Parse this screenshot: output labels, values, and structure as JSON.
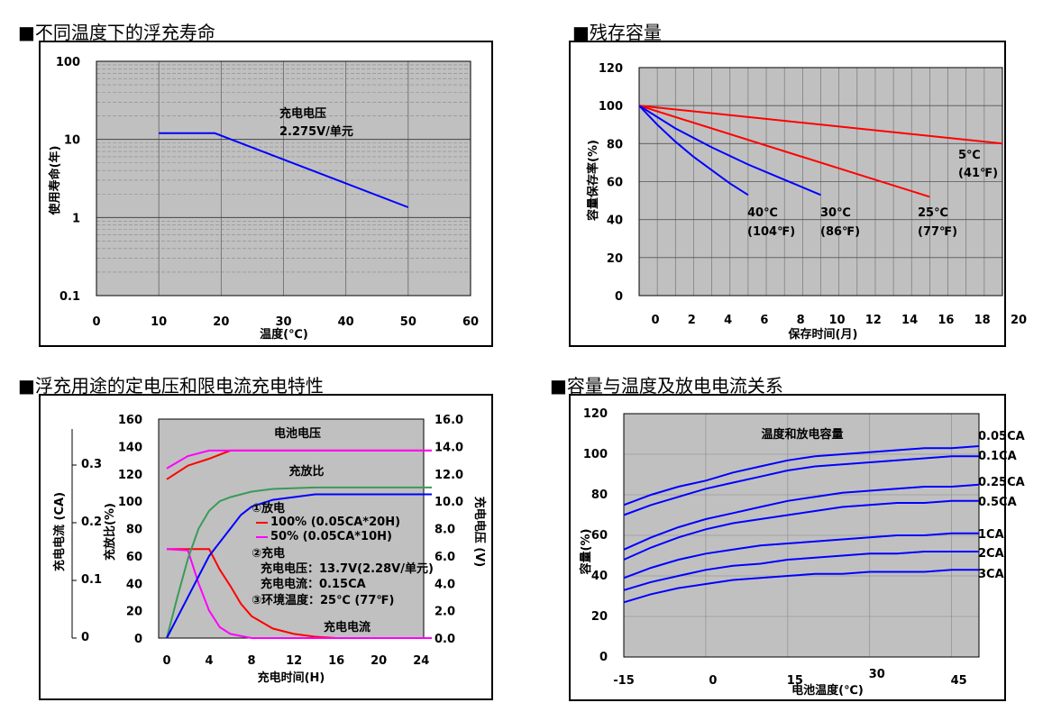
{
  "titles": {
    "float_life": "■不同温度下的浮充寿命",
    "residual": "■残存容量",
    "charging": "■浮充用途的定电压和限电流充电特性",
    "capacity": "■容量与温度及放电电流关系"
  },
  "chart_data": [
    {
      "id": "float_life",
      "type": "line",
      "xlabel": "温度(℃)",
      "ylabel": "使用寿命(年)",
      "xlim": [
        0,
        60
      ],
      "xticks": [
        "0",
        "10",
        "20",
        "30",
        "40",
        "50",
        "60"
      ],
      "ylim": [
        0.1,
        100
      ],
      "yscale": "log",
      "yticks": [
        "0.1",
        "1",
        "10",
        "100"
      ],
      "grid": true,
      "annotation": [
        "充电电压",
        "2.275V/单元"
      ],
      "series": [
        {
          "x": [
            10,
            19,
            50
          ],
          "y": [
            12,
            12,
            1.35
          ],
          "color": "#0000ff"
        }
      ]
    },
    {
      "id": "residual",
      "type": "line",
      "xlabel": "保存时间(月)",
      "ylabel": "容量保存率(%)",
      "xlim": [
        0,
        20
      ],
      "xticks": [
        "0",
        "2",
        "4",
        "6",
        "8",
        "10",
        "12",
        "14",
        "16",
        "18",
        "20"
      ],
      "ylim": [
        0,
        120
      ],
      "yticks": [
        "0",
        "20",
        "40",
        "60",
        "80",
        "100",
        "120"
      ],
      "grid": true,
      "series": [
        {
          "name": [
            "5℃",
            "(41℉)"
          ],
          "color": "#ff0000",
          "x": [
            0,
            20
          ],
          "y": [
            100,
            80
          ]
        },
        {
          "name": [
            "25℃",
            "(77℉)"
          ],
          "color": "#ff0000",
          "x": [
            0,
            16
          ],
          "y": [
            100,
            52
          ]
        },
        {
          "name": [
            "30℃",
            "(86℉)"
          ],
          "color": "#0000ff",
          "x": [
            0,
            2,
            4,
            6,
            8,
            10
          ],
          "y": [
            100,
            88,
            78,
            69,
            61,
            53
          ]
        },
        {
          "name": [
            "40℃",
            "(104℉)"
          ],
          "color": "#0000ff",
          "x": [
            0,
            1,
            2,
            3,
            4,
            5,
            6
          ],
          "y": [
            100,
            90,
            81,
            73,
            66,
            59,
            53
          ]
        }
      ]
    },
    {
      "id": "charging",
      "type": "line",
      "xlabel": "充电时间(H)",
      "ylabel_left_outer": "充电电流 (CA)",
      "ylabel_left": "充放比(%)",
      "ylabel_right": "充电电压 (V)",
      "xlim": [
        0,
        25
      ],
      "xticks": [
        "0",
        "4",
        "8",
        "12",
        "16",
        "20",
        "24"
      ],
      "ylim": [
        0,
        160
      ],
      "yticks": [
        "0",
        "20",
        "40",
        "60",
        "80",
        "100",
        "120",
        "140",
        "160"
      ],
      "y2ticks": [
        "0.0",
        "2.0",
        "4.0",
        "6.0",
        "8.0",
        "10.0",
        "12.0",
        "14.0",
        "16.0"
      ],
      "y3ticks": [
        "0",
        "0.1",
        "0.2",
        "0.3"
      ],
      "grid": false,
      "labels": {
        "voltage": "电池电压",
        "ratio": "充放比",
        "current": "充电电流"
      },
      "legend": {
        "discharge": "①放电",
        "l100": "100% (0.05CA*20H)",
        "l50": "50% (0.05CA*10H)",
        "charge": "②充电",
        "volt": "充电电压：13.7V(2.28V/单元)",
        "curr": "充电电流：0.15CA",
        "env": "③环境温度：25℃ (77℉)"
      },
      "series": [
        {
          "name": "100% voltage",
          "color": "#ff0000",
          "x": [
            0,
            2,
            4,
            6,
            25
          ],
          "y": [
            116,
            126,
            131,
            137,
            137
          ]
        },
        {
          "name": "50% voltage",
          "color": "#ff00ff",
          "x": [
            0,
            2,
            4,
            25
          ],
          "y": [
            124,
            133,
            137,
            137
          ]
        },
        {
          "name": "100% current",
          "color": "#ff0000",
          "x": [
            0,
            4,
            5,
            6,
            7,
            8,
            10,
            12,
            14,
            16,
            25
          ],
          "y": [
            65,
            65,
            50,
            38,
            25,
            16,
            7,
            3,
            1,
            0,
            0
          ]
        },
        {
          "name": "50% current",
          "color": "#ff00ff",
          "x": [
            0,
            2,
            3,
            4,
            5,
            6,
            8,
            25
          ],
          "y": [
            65,
            64,
            40,
            20,
            8,
            3,
            0,
            0
          ]
        },
        {
          "name": "50% ratio",
          "color": "#3a9a5a",
          "x": [
            0,
            1,
            2,
            3,
            4,
            5,
            6,
            8,
            10,
            14,
            25
          ],
          "y": [
            0,
            30,
            58,
            80,
            93,
            100,
            103,
            107,
            109,
            110,
            110
          ]
        },
        {
          "name": "100% ratio",
          "color": "#0000ff",
          "x": [
            0,
            2,
            4,
            6,
            7,
            8,
            10,
            14,
            25
          ],
          "y": [
            0,
            30,
            60,
            80,
            90,
            96,
            101,
            105,
            105
          ]
        }
      ]
    },
    {
      "id": "capacity",
      "type": "line",
      "title": "温度和放电容量",
      "xlabel": "电池温度(℃)",
      "ylabel": "容量(%)",
      "xlim": [
        -15,
        50
      ],
      "xticks": [
        "-15",
        "0",
        "15",
        "30",
        "45"
      ],
      "ylim": [
        0,
        120
      ],
      "yticks": [
        "0",
        "20",
        "40",
        "60",
        "80",
        "100",
        "120"
      ],
      "grid": true,
      "series": [
        {
          "name": "0.05CA",
          "color": "#0000ff",
          "x": [
            -15,
            -10,
            -5,
            0,
            5,
            10,
            15,
            20,
            25,
            30,
            35,
            40,
            45,
            50
          ],
          "y": [
            75,
            80,
            84,
            87,
            91,
            94,
            97,
            99,
            100,
            101,
            102,
            103,
            103,
            104
          ]
        },
        {
          "name": "0.1CA",
          "color": "#0000ff",
          "x": [
            -15,
            -10,
            -5,
            0,
            5,
            10,
            15,
            20,
            25,
            30,
            35,
            40,
            45,
            50
          ],
          "y": [
            70,
            75,
            79,
            83,
            86,
            89,
            92,
            94,
            95,
            96,
            97,
            98,
            99,
            99
          ]
        },
        {
          "name": "0.25CA",
          "color": "#0000ff",
          "x": [
            -15,
            -10,
            -5,
            0,
            5,
            10,
            15,
            20,
            25,
            30,
            35,
            40,
            45,
            50
          ],
          "y": [
            53,
            59,
            64,
            68,
            71,
            74,
            77,
            79,
            81,
            82,
            83,
            84,
            84,
            85
          ]
        },
        {
          "name": "0.5CA",
          "color": "#0000ff",
          "x": [
            -15,
            -10,
            -5,
            0,
            5,
            10,
            15,
            20,
            25,
            30,
            35,
            40,
            45,
            50
          ],
          "y": [
            48,
            54,
            59,
            63,
            66,
            68,
            70,
            72,
            74,
            75,
            76,
            76,
            77,
            77
          ]
        },
        {
          "name": "1CA",
          "color": "#0000ff",
          "x": [
            -15,
            -10,
            -5,
            0,
            5,
            10,
            15,
            20,
            25,
            30,
            35,
            40,
            45,
            50
          ],
          "y": [
            39,
            44,
            48,
            51,
            53,
            55,
            56,
            57,
            58,
            59,
            60,
            60,
            61,
            61
          ]
        },
        {
          "name": "2CA",
          "color": "#0000ff",
          "x": [
            -15,
            -10,
            -5,
            0,
            5,
            10,
            15,
            20,
            25,
            30,
            35,
            40,
            45,
            50
          ],
          "y": [
            33,
            37,
            40,
            43,
            45,
            46,
            48,
            49,
            50,
            51,
            51,
            52,
            52,
            52
          ]
        },
        {
          "name": "3CA",
          "color": "#0000ff",
          "x": [
            -15,
            -10,
            -5,
            0,
            5,
            10,
            15,
            20,
            25,
            30,
            35,
            40,
            45,
            50
          ],
          "y": [
            27,
            31,
            34,
            36,
            38,
            39,
            40,
            41,
            41,
            42,
            42,
            42,
            43,
            43
          ]
        }
      ]
    }
  ]
}
